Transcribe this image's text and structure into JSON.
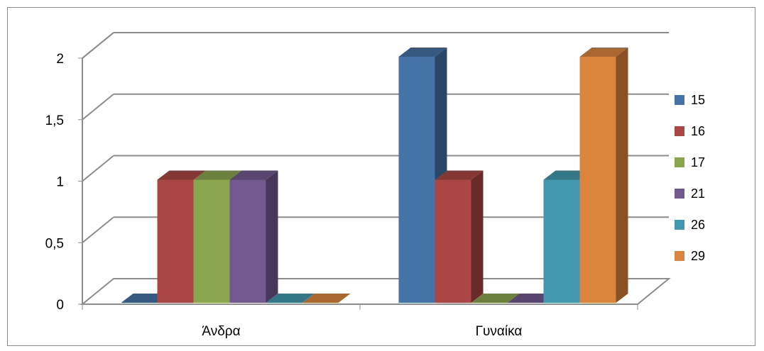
{
  "chart_data": {
    "type": "bar",
    "categories": [
      "Άνδρα",
      "Γυναίκα"
    ],
    "series": [
      {
        "name": "15",
        "values": [
          0,
          2
        ],
        "color": "#4572A7"
      },
      {
        "name": "16",
        "values": [
          1,
          1
        ],
        "color": "#AA4643"
      },
      {
        "name": "17",
        "values": [
          1,
          0
        ],
        "color": "#89A54E"
      },
      {
        "name": "21",
        "values": [
          1,
          0
        ],
        "color": "#71588F"
      },
      {
        "name": "26",
        "values": [
          0,
          1
        ],
        "color": "#4198AF"
      },
      {
        "name": "29",
        "values": [
          0,
          2
        ],
        "color": "#DB843D"
      }
    ],
    "yticks": [
      "0",
      "0,5",
      "1",
      "1,5",
      "2"
    ],
    "ylim": [
      0,
      2
    ],
    "title": "",
    "xlabel": "",
    "ylabel": "",
    "grid": true,
    "legend": "right",
    "style": "3d-clustered-column"
  }
}
